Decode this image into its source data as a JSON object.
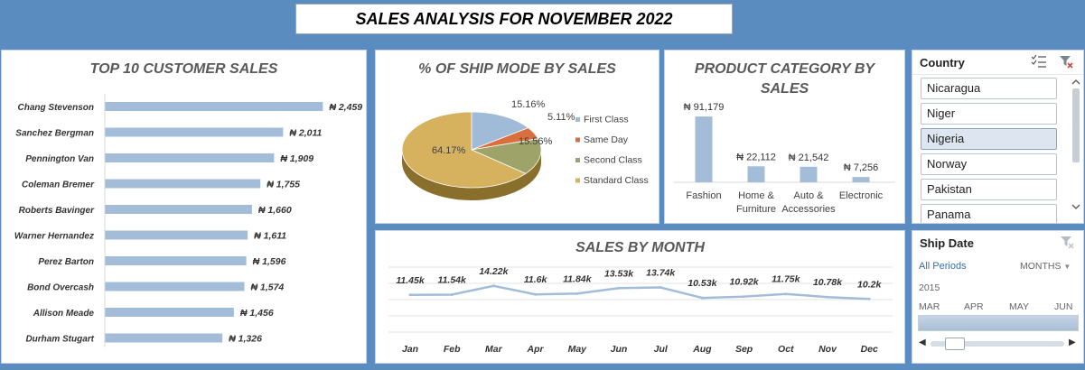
{
  "dashboard": {
    "title": "SALES ANALYSIS FOR NOVEMBER 2022"
  },
  "colors": {
    "background": "#5b8cc0",
    "bar": "#a3bcd8",
    "line": "#a3bcd8",
    "first_class": "#9fbbd8",
    "same_day": "#d96f3d",
    "second_class": "#9ea36a",
    "standard_class": "#d6b15e"
  },
  "top_customers": {
    "title": "TOP 10 CUSTOMER SALES",
    "currency": "₦",
    "chart_data": {
      "type": "bar",
      "orientation": "horizontal",
      "categories": [
        "Chang Stevenson",
        "Sanchez Bergman",
        "Pennington Van",
        "Coleman Bremer",
        "Roberts Bavinger",
        "Warner Hernandez",
        "Perez Barton",
        "Bond Overcash",
        "Allison Meade",
        "Durham Stugart"
      ],
      "values": [
        2459,
        2011,
        1909,
        1755,
        1660,
        1611,
        1596,
        1574,
        1456,
        1326
      ],
      "labels": [
        "₦ 2,459",
        "₦ 2,011",
        "₦ 1,909",
        "₦ 1,755",
        "₦ 1,660",
        "₦ 1,611",
        "₦ 1,596",
        "₦ 1,574",
        "₦ 1,456",
        "₦ 1,326"
      ],
      "xlim": [
        0,
        2700
      ]
    }
  },
  "ship_mode": {
    "title": "%  OF SHIP MODE BY SALES",
    "chart_data": {
      "type": "pie",
      "categories": [
        "First Class",
        "Same Day",
        "Second Class",
        "Standard Class"
      ],
      "values": [
        15.16,
        5.11,
        15.56,
        64.17
      ],
      "labels": [
        "15.16%",
        "5.11%",
        "15.56%",
        "64.17%"
      ],
      "legend": "right"
    }
  },
  "product_category": {
    "title_line1": "PRODUCT CATEGORY BY",
    "title_line2": "SALES",
    "chart_data": {
      "type": "bar",
      "categories": [
        "Fashion",
        "Home & Furniture",
        "Auto & Accessories",
        "Electronic"
      ],
      "category_lines": [
        [
          "Fashion"
        ],
        [
          "Home &",
          "Furniture"
        ],
        [
          "Auto &",
          "Accessories"
        ],
        [
          "Electronic"
        ]
      ],
      "values": [
        91179,
        22112,
        21542,
        7256
      ],
      "labels": [
        "₦ 91,179",
        "₦ 22,112",
        "₦ 21,542",
        "₦ 7,256"
      ],
      "ylim": [
        0,
        100000
      ]
    }
  },
  "sales_by_month": {
    "title": "SALES BY MONTH",
    "chart_data": {
      "type": "line",
      "categories": [
        "Jan",
        "Feb",
        "Mar",
        "Apr",
        "May",
        "Jun",
        "Jul",
        "Aug",
        "Sep",
        "Oct",
        "Nov",
        "Dec"
      ],
      "values": [
        11450,
        11540,
        14220,
        11600,
        11840,
        13530,
        13740,
        10530,
        10920,
        11750,
        10780,
        10200
      ],
      "labels": [
        "11.45k",
        "11.54k",
        "14.22k",
        "11.6k",
        "11.84k",
        "13.53k",
        "13.74k",
        "10.53k",
        "10.92k",
        "11.75k",
        "10.78k",
        "10.2k"
      ],
      "ylim": [
        0,
        20000
      ],
      "grid": true
    }
  },
  "country_slicer": {
    "title": "Country",
    "items": [
      "Nicaragua",
      "Niger",
      "Nigeria",
      "Norway",
      "Pakistan",
      "Panama"
    ],
    "selected": "Nigeria"
  },
  "date_slicer": {
    "title": "Ship Date",
    "all_periods": "All Periods",
    "level": "MONTHS",
    "year": "2015",
    "months": [
      "MAR",
      "APR",
      "MAY",
      "JUN"
    ]
  }
}
